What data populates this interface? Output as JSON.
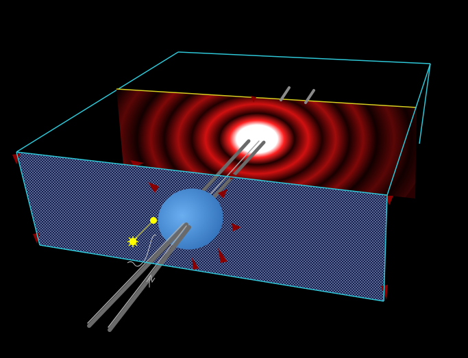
{
  "scene": {
    "background": "#000000",
    "box_edge_color": "#2ec8d8",
    "floor_color": "#7a8fd8",
    "screen_top_edge_color": "#d8d020",
    "lens_color": "#4a8fdc",
    "rod_color": "#8a8a8a",
    "pointer_color": "#8a0000",
    "light_color": "#ffff00",
    "pattern": "concentric-ring-diffraction",
    "pattern_colors": [
      "#ffffff",
      "#ff1010",
      "#000000"
    ]
  },
  "icons": {
    "light_source": "sun-icon",
    "probe": "yellow-ball-icon",
    "wave": "squiggle-icon",
    "handle": "cone-handle-icon"
  }
}
